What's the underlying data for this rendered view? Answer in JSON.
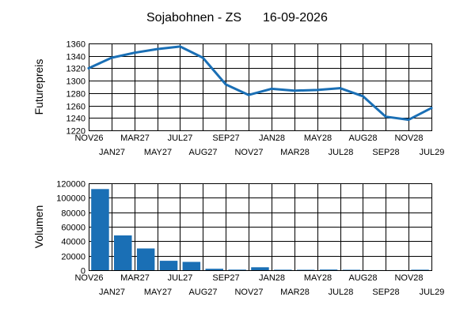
{
  "header": {
    "product": "Sojabohnen - ZS",
    "date": "16-09-2026"
  },
  "chart_data": [
    {
      "type": "line",
      "ylabel": "Futurepreis",
      "ylim": [
        1220,
        1360
      ],
      "yticks": [
        1220,
        1240,
        1260,
        1280,
        1300,
        1320,
        1340,
        1360
      ],
      "grid": true,
      "color": "#1a6fb5",
      "categories": [
        "NOV26",
        "JAN27",
        "MAR27",
        "MAY27",
        "JUL27",
        "AUG27",
        "SEP27",
        "NOV27",
        "JAN28",
        "MAR28",
        "MAY28",
        "JUL28",
        "AUG28",
        "SEP28",
        "NOV28",
        "JUL29"
      ],
      "values": [
        1320,
        1337,
        1345,
        1351,
        1355,
        1337,
        1294,
        1277,
        1287,
        1284,
        1285,
        1288,
        1275,
        1242,
        1237,
        1256
      ]
    },
    {
      "type": "bar",
      "ylabel": "Volumen",
      "ylim": [
        0,
        120000
      ],
      "yticks": [
        0,
        20000,
        40000,
        60000,
        80000,
        100000,
        120000
      ],
      "grid": true,
      "color": "#1a6fb5",
      "categories": [
        "NOV26",
        "JAN27",
        "MAR27",
        "MAY27",
        "JUL27",
        "AUG27",
        "SEP27",
        "NOV27",
        "JAN28",
        "MAR28",
        "MAY28",
        "JUL28",
        "AUG28",
        "SEP28",
        "NOV28",
        "JUL29"
      ],
      "values": [
        112000,
        48000,
        30000,
        13000,
        11500,
        2000,
        800,
        4000,
        700,
        500,
        900,
        500,
        150,
        100,
        700,
        0
      ]
    }
  ]
}
